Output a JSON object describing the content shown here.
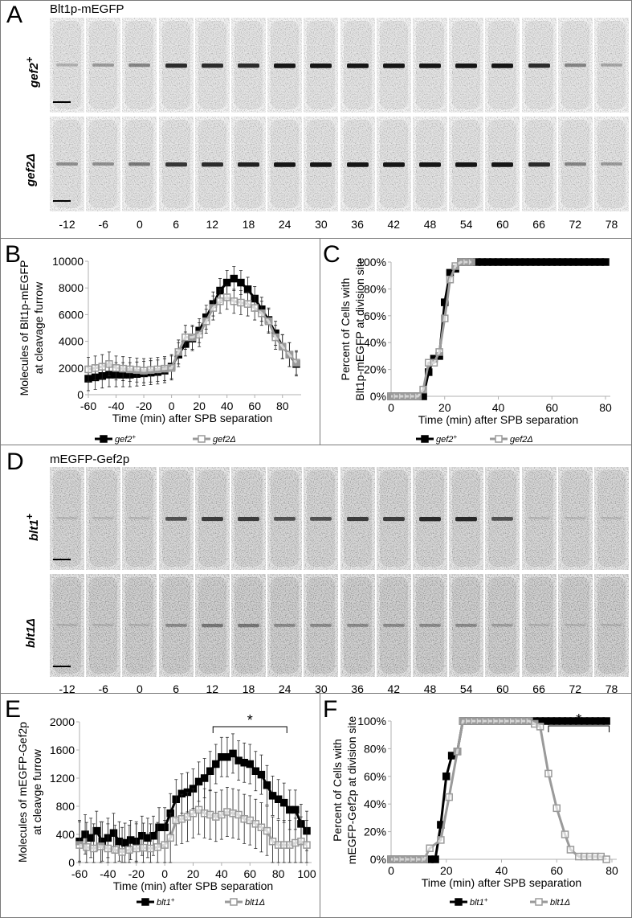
{
  "panel_A": {
    "letter": "A",
    "title": "Blt1p-mEGFP",
    "rows": [
      {
        "label": "gef2",
        "sup": "+",
        "ring_intensity": [
          0.2,
          0.3,
          0.4,
          0.8,
          0.8,
          0.8,
          0.9,
          0.9,
          0.9,
          0.9,
          0.9,
          0.9,
          0.9,
          0.8,
          0.4,
          0.25
        ],
        "background": 0.18
      },
      {
        "label": "gef2",
        "sup": "Δ",
        "ring_intensity": [
          0.35,
          0.35,
          0.45,
          0.75,
          0.8,
          0.85,
          0.9,
          0.9,
          0.9,
          0.9,
          0.9,
          0.9,
          0.9,
          0.8,
          0.4,
          0.3
        ],
        "background": 0.2
      }
    ],
    "time_labels": [
      "-12",
      "-6",
      "0",
      "6",
      "12",
      "18",
      "24",
      "30",
      "36",
      "42",
      "48",
      "54",
      "60",
      "66",
      "72",
      "78"
    ]
  },
  "panel_D": {
    "letter": "D",
    "title": "mEGFP-Gef2p",
    "rows": [
      {
        "label": "blt1",
        "sup": "+",
        "ring_intensity": [
          0.1,
          0.1,
          0.1,
          0.6,
          0.7,
          0.7,
          0.6,
          0.6,
          0.7,
          0.7,
          0.8,
          0.8,
          0.6,
          0.1,
          0.1,
          0.1
        ],
        "background": 0.35
      },
      {
        "label": "blt1",
        "sup": "Δ",
        "ring_intensity": [
          0.1,
          0.1,
          0.1,
          0.3,
          0.4,
          0.4,
          0.3,
          0.3,
          0.3,
          0.3,
          0.3,
          0.3,
          0.2,
          0.1,
          0.1,
          0.1
        ],
        "background": 0.42
      }
    ],
    "time_labels": [
      "-12",
      "-6",
      "0",
      "6",
      "12",
      "18",
      "24",
      "30",
      "36",
      "42",
      "48",
      "54",
      "60",
      "66",
      "72",
      "78"
    ]
  },
  "colors": {
    "series_dark": "#000000",
    "series_light": "#9a9a9a",
    "axis": "#b0b0b0",
    "border": "#7a7a7a"
  },
  "chart_data": [
    {
      "id": "B",
      "letter": "B",
      "type": "line",
      "ylabel": [
        "Molecules of Blt1p-mEGFP",
        "at cleavage furrow"
      ],
      "xlabel": "Time (min) after SPB separation",
      "xlim": [
        -60,
        90
      ],
      "ylim": [
        0,
        10000
      ],
      "xticks": [
        -60,
        -40,
        -20,
        0,
        20,
        40,
        60,
        80
      ],
      "yticks": [
        0,
        2000,
        4000,
        6000,
        8000,
        10000
      ],
      "ytick_format": "int",
      "series": [
        {
          "name": "gef2",
          "sup": "+",
          "style": "dark",
          "error": 900,
          "x": [
            -60,
            -55,
            -50,
            -45,
            -40,
            -35,
            -30,
            -25,
            -20,
            -15,
            -10,
            -5,
            0,
            5,
            10,
            15,
            20,
            25,
            30,
            35,
            40,
            45,
            50,
            55,
            60,
            65,
            70,
            75,
            80,
            85,
            90
          ],
          "y": [
            1200,
            1300,
            1400,
            1500,
            1500,
            1500,
            1500,
            1550,
            1600,
            1650,
            1700,
            1800,
            2100,
            3000,
            3800,
            4200,
            4800,
            5800,
            6800,
            7800,
            8400,
            8700,
            8400,
            7900,
            7200,
            6400,
            5600,
            4600,
            3600,
            3000,
            2300
          ]
        },
        {
          "name": "gef2",
          "sup": "Δ",
          "style": "light",
          "error": 900,
          "x": [
            -60,
            -55,
            -50,
            -45,
            -40,
            -35,
            -30,
            -25,
            -20,
            -15,
            -10,
            -5,
            0,
            5,
            10,
            15,
            20,
            25,
            30,
            35,
            40,
            45,
            50,
            55,
            60,
            65,
            70,
            75,
            80,
            85,
            90
          ],
          "y": [
            1900,
            2000,
            2100,
            2300,
            2000,
            1950,
            1900,
            1850,
            1800,
            1850,
            1900,
            1950,
            2000,
            3200,
            4300,
            4300,
            4500,
            5500,
            6500,
            7000,
            7300,
            7000,
            6900,
            6800,
            6500,
            6100,
            5500,
            4300,
            3600,
            3000,
            2400
          ]
        }
      ]
    },
    {
      "id": "C",
      "letter": "C",
      "type": "line",
      "ylabel": [
        "Percent of Cells with",
        "Blt1p-mEGFP at division site"
      ],
      "xlabel": "Time (min) after SPB separation",
      "xlim": [
        0,
        80
      ],
      "ylim": [
        0,
        100
      ],
      "xticks": [
        0,
        20,
        40,
        60,
        80
      ],
      "yticks": [
        0,
        20,
        40,
        60,
        80,
        100
      ],
      "ytick_format": "pct",
      "series": [
        {
          "name": "gef2",
          "sup": "+",
          "style": "dark",
          "error": 0,
          "x": [
            0,
            2,
            4,
            6,
            8,
            10,
            12,
            14,
            16,
            18,
            20,
            22,
            24,
            26,
            28,
            30,
            32,
            34,
            36,
            38,
            40,
            42,
            44,
            46,
            48,
            50,
            52,
            54,
            56,
            58,
            60,
            62,
            64,
            66,
            68,
            70,
            72,
            74,
            76,
            78,
            80
          ],
          "y": [
            0,
            0,
            0,
            0,
            0,
            0,
            0,
            18,
            28,
            30,
            70,
            92,
            95,
            100,
            100,
            100,
            100,
            100,
            100,
            100,
            100,
            100,
            100,
            100,
            100,
            100,
            100,
            100,
            100,
            100,
            100,
            100,
            100,
            100,
            100,
            100,
            100,
            100,
            100,
            100,
            100
          ]
        },
        {
          "name": "gef2",
          "sup": "Δ",
          "style": "light",
          "error": 0,
          "x": [
            0,
            2,
            4,
            6,
            8,
            10,
            12,
            14,
            16,
            18,
            20,
            22,
            24,
            26,
            28,
            30
          ],
          "y": [
            0,
            0,
            0,
            0,
            0,
            0,
            5,
            25,
            25,
            33,
            58,
            87,
            97,
            100,
            100,
            100
          ]
        }
      ]
    },
    {
      "id": "E",
      "letter": "E",
      "type": "line",
      "ylabel": [
        "Molecules of mEGFP-Gef2p",
        "at cleavge furrow"
      ],
      "xlabel": "Time (min) after SPB separation",
      "xlim": [
        -60,
        100
      ],
      "ylim": [
        0,
        2000
      ],
      "xticks": [
        -60,
        -40,
        -20,
        0,
        20,
        40,
        60,
        80,
        100
      ],
      "yticks": [
        0,
        400,
        800,
        1200,
        1600,
        2000
      ],
      "ytick_format": "int",
      "annotation": {
        "text": "*",
        "x_range": [
          34,
          86
        ]
      },
      "series": [
        {
          "name": "blt1",
          "sup": "+",
          "style": "dark",
          "error": 280,
          "x": [
            -60,
            -56,
            -52,
            -48,
            -44,
            -40,
            -36,
            -32,
            -28,
            -24,
            -20,
            -16,
            -12,
            -8,
            -4,
            0,
            4,
            8,
            12,
            16,
            20,
            24,
            28,
            32,
            36,
            40,
            44,
            48,
            52,
            56,
            60,
            64,
            68,
            72,
            76,
            80,
            84,
            88,
            92,
            96,
            100
          ],
          "y": [
            300,
            400,
            350,
            450,
            300,
            350,
            420,
            300,
            280,
            320,
            300,
            380,
            350,
            380,
            500,
            500,
            700,
            900,
            980,
            1000,
            1050,
            1150,
            1200,
            1300,
            1400,
            1500,
            1500,
            1550,
            1450,
            1420,
            1400,
            1300,
            1250,
            1100,
            950,
            900,
            850,
            750,
            750,
            550,
            450
          ]
        },
        {
          "name": "blt1",
          "sup": "Δ",
          "style": "light",
          "error": 350,
          "x": [
            -60,
            -55,
            -50,
            -45,
            -40,
            -35,
            -30,
            -25,
            -20,
            -15,
            -10,
            -5,
            0,
            4,
            8,
            12,
            16,
            20,
            24,
            28,
            32,
            36,
            40,
            44,
            48,
            52,
            56,
            60,
            64,
            68,
            72,
            76,
            80,
            84,
            88,
            92,
            96,
            100
          ],
          "y": [
            250,
            220,
            200,
            230,
            200,
            180,
            150,
            180,
            200,
            210,
            200,
            220,
            250,
            350,
            600,
            620,
            650,
            700,
            750,
            700,
            680,
            650,
            680,
            720,
            700,
            680,
            620,
            600,
            550,
            500,
            450,
            300,
            250,
            250,
            250,
            280,
            300,
            250
          ]
        }
      ]
    },
    {
      "id": "F",
      "letter": "F",
      "type": "line",
      "ylabel": [
        "Percent of Cells with",
        "mEGFP-Gef2p at division site"
      ],
      "xlabel": "Time (min) after SPB separation",
      "xlim": [
        0,
        80
      ],
      "ylim": [
        0,
        100
      ],
      "xticks": [
        0,
        20,
        40,
        60,
        80
      ],
      "yticks": [
        0,
        20,
        40,
        60,
        80,
        100
      ],
      "ytick_format": "pct",
      "annotation": {
        "text": "*",
        "x_range": [
          57,
          79
        ]
      },
      "series": [
        {
          "name": "blt1",
          "sup": "+",
          "style": "dark",
          "error": 0,
          "x": [
            0,
            2,
            4,
            6,
            8,
            10,
            12,
            14,
            16,
            18,
            20,
            22,
            24,
            26,
            28,
            30,
            32,
            34,
            36,
            38,
            40,
            42,
            44,
            46,
            48,
            50,
            52,
            54,
            56,
            58,
            60,
            62,
            64,
            66,
            68,
            70,
            72,
            74,
            76,
            78
          ],
          "y": [
            0,
            0,
            0,
            0,
            0,
            0,
            0,
            0,
            0,
            25,
            60,
            75,
            78,
            100,
            100,
            100,
            100,
            100,
            100,
            100,
            100,
            100,
            100,
            100,
            100,
            100,
            100,
            100,
            100,
            100,
            100,
            100,
            100,
            100,
            100,
            100,
            100,
            100,
            100,
            100
          ]
        },
        {
          "name": "blt1",
          "sup": "Δ",
          "style": "light",
          "error": 0,
          "x": [
            0,
            2,
            4,
            6,
            8,
            10,
            12,
            14,
            18,
            21,
            24,
            26,
            28,
            30,
            32,
            34,
            36,
            38,
            40,
            42,
            44,
            46,
            48,
            50,
            52,
            54,
            57,
            60,
            63,
            65,
            68,
            70,
            72,
            74,
            76,
            78
          ],
          "y": [
            0,
            0,
            0,
            0,
            0,
            0,
            0,
            8,
            14,
            45,
            78,
            100,
            100,
            100,
            100,
            100,
            100,
            100,
            100,
            100,
            100,
            100,
            100,
            100,
            98,
            96,
            62,
            37,
            18,
            7,
            2,
            2,
            2,
            2,
            2,
            0
          ]
        }
      ]
    }
  ]
}
